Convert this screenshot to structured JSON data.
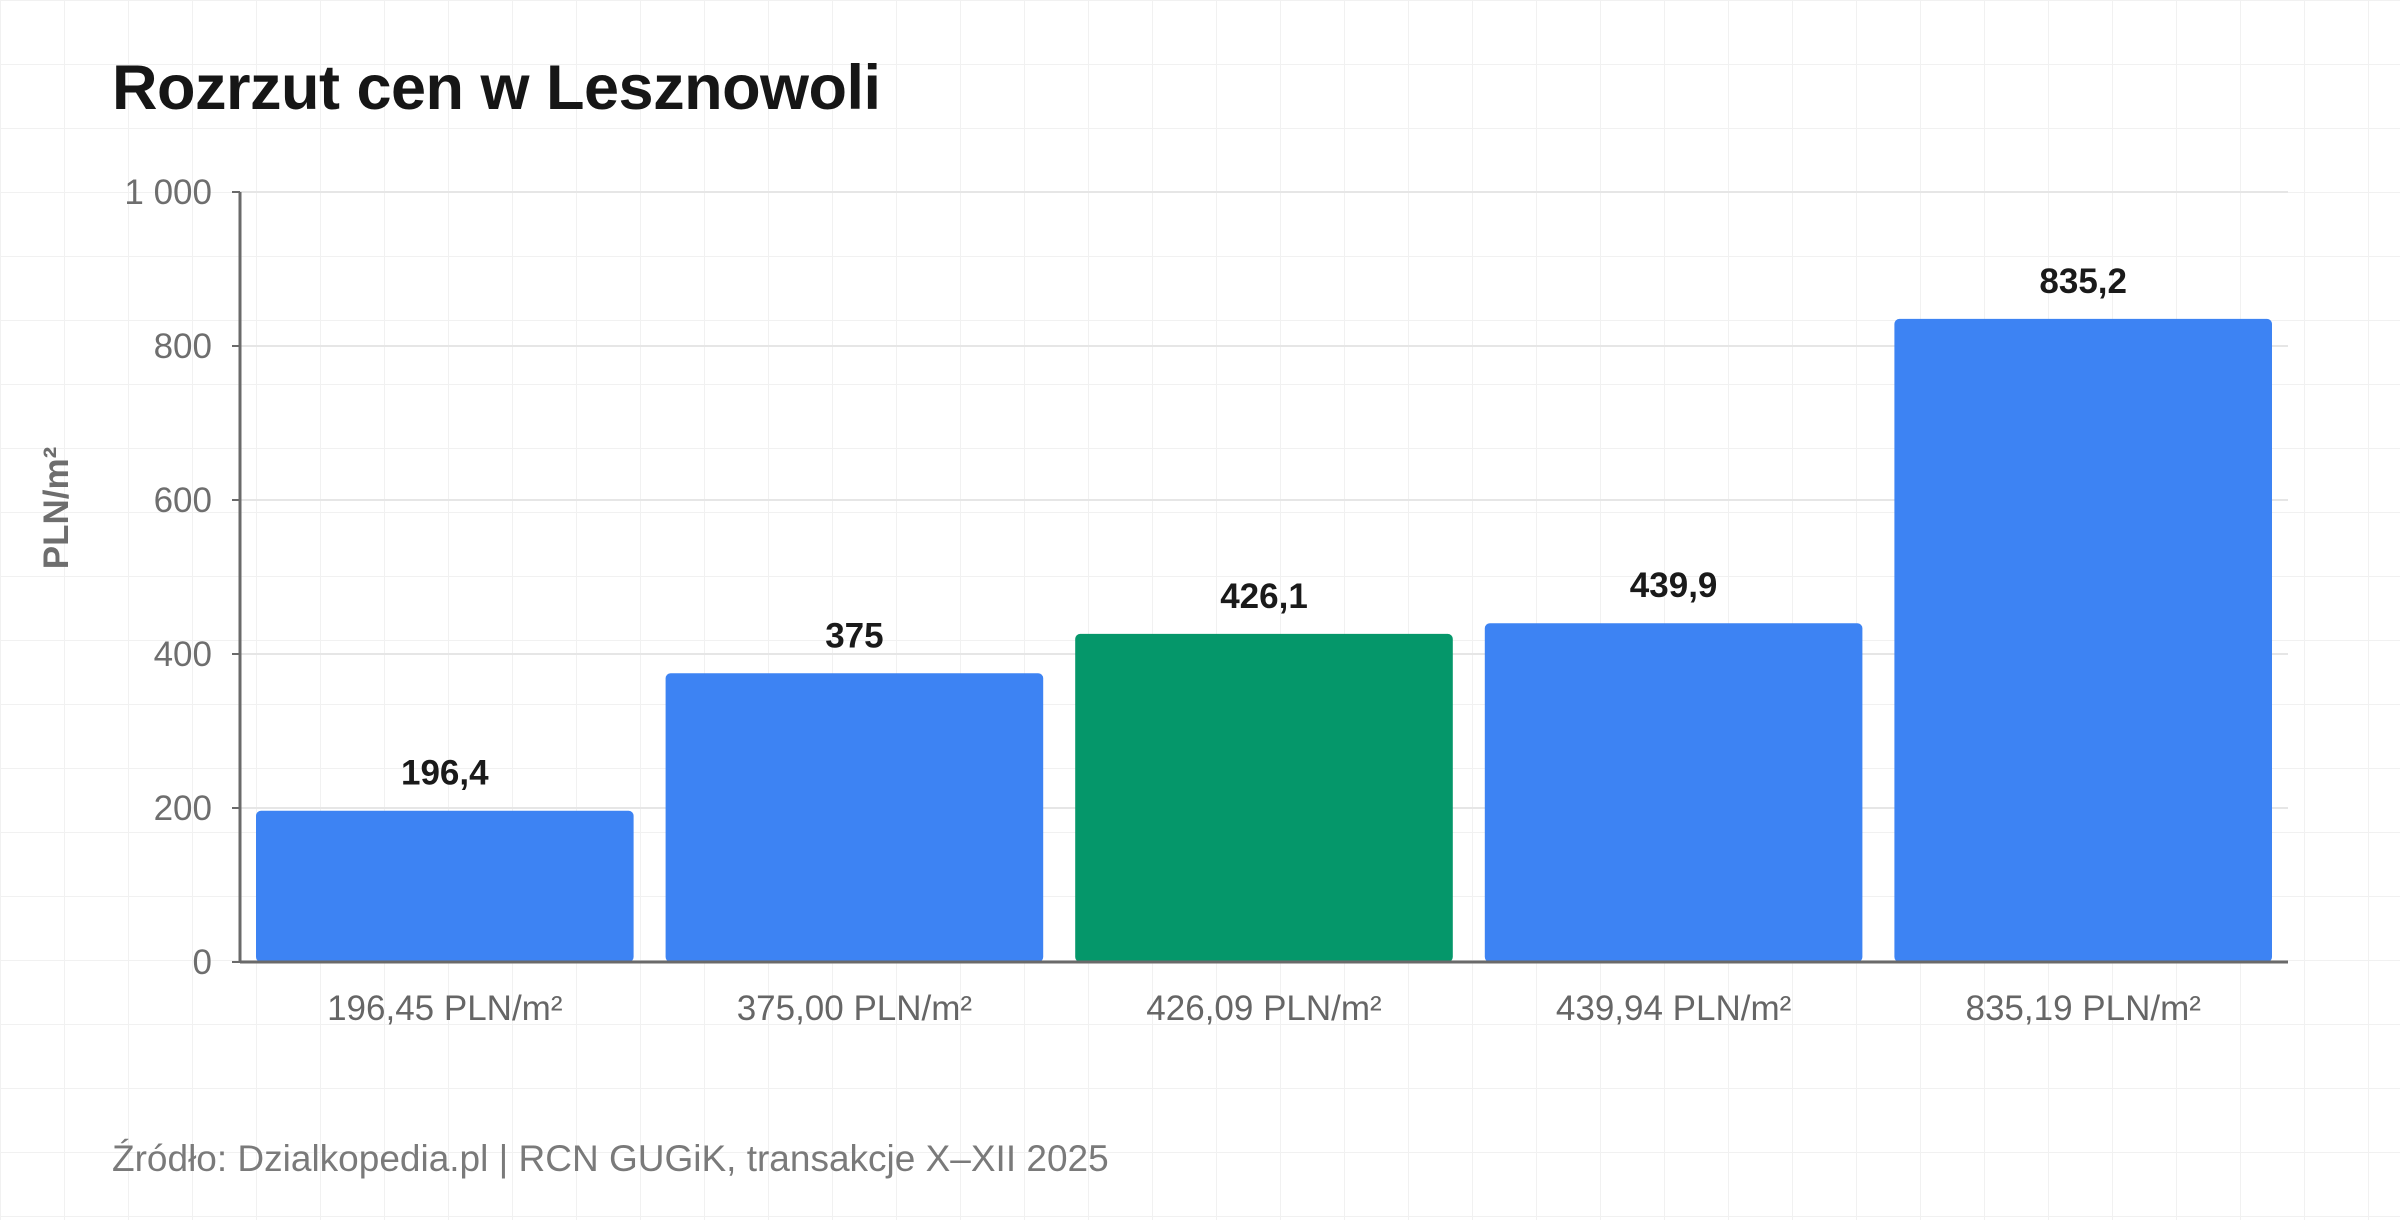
{
  "chart_data": {
    "type": "bar",
    "title": "Rozrzut cen w Lesznowoli",
    "ylabel": "PLN/m²",
    "xlabel": "",
    "categories": [
      "196,45 PLN/m²",
      "375,00 PLN/m²",
      "426,09 PLN/m²",
      "439,94 PLN/m²",
      "835,19 PLN/m²"
    ],
    "values": [
      196.45,
      375.0,
      426.09,
      439.94,
      835.19
    ],
    "value_labels": [
      "196,4",
      "375",
      "426,1",
      "439,9",
      "835,2"
    ],
    "ylim": [
      0,
      1000
    ],
    "yticks": [
      0,
      200,
      400,
      600,
      800,
      1000
    ],
    "ytick_labels": [
      "0",
      "200",
      "400",
      "600",
      "800",
      "1 000"
    ],
    "grid": true,
    "bar_colors": [
      "#3d83f3",
      "#3d83f3",
      "#05976a",
      "#3d83f3",
      "#3d83f3"
    ],
    "source": "Źródło: Dzialkopedia.pl | RCN GUGiK, transakcje X–XII 2025"
  }
}
